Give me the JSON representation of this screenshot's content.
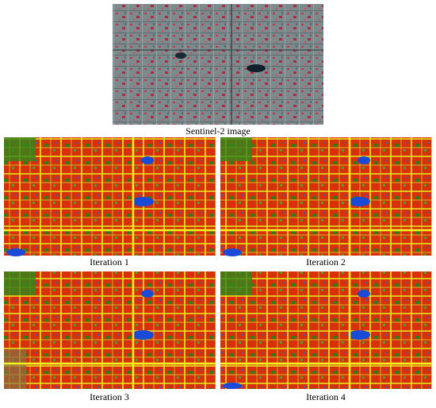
{
  "images": [
    {
      "caption": "Sentinel-2 image"
    },
    {
      "caption": "Iteration 1"
    },
    {
      "caption": "Iteration 2"
    },
    {
      "caption": "Iteration 3"
    },
    {
      "caption": "Iteration 4"
    }
  ]
}
